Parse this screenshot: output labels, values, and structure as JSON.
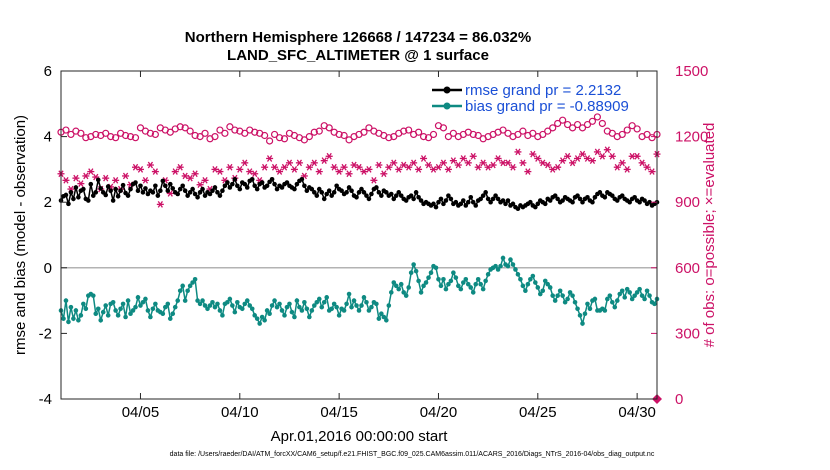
{
  "chart_data": {
    "type": "line",
    "title": "Northern Hemisphere 126668 / 147234 = 86.032%",
    "subtitle": "LAND_SFC_ALTIMETER @ 1 surface",
    "xlabel": "Apr.01,2016 00:00:00 start",
    "ylabel": "rmse and bias (model - observation)",
    "ylabel_right": "# of obs: o=possible; ×=evaluated",
    "xlim": [
      1,
      31
    ],
    "ylim": [
      -4,
      6
    ],
    "ylim_right": [
      0,
      1500
    ],
    "xticks": [
      5,
      10,
      15,
      20,
      25,
      30
    ],
    "xtick_labels": [
      "04/05",
      "04/10",
      "04/15",
      "04/20",
      "04/25",
      "04/30"
    ],
    "yticks": [
      -4,
      -2,
      0,
      2,
      4,
      6
    ],
    "ytick_labels": [
      "-4",
      "-2",
      "0",
      "2",
      "4",
      "6"
    ],
    "yticks_right": [
      0,
      300,
      600,
      900,
      1200,
      1500
    ],
    "ytick_labels_right": [
      "0",
      "300",
      "600",
      "900",
      "1200",
      "1500"
    ],
    "legend": {
      "position": "top-right",
      "entries": [
        "rmse grand pr = 2.2132",
        "bias grand pr = -0.88909"
      ]
    },
    "colors": {
      "rmse": "#000000",
      "bias": "#0e8a82",
      "obs": "#cc1166",
      "zero_line": "#b3b3b3",
      "legend_text": "#1a4fd6"
    },
    "step_days": 0.125,
    "series": [
      {
        "name": "rmse",
        "values": [
          2.05,
          2.18,
          2.22,
          1.95,
          2.3,
          2.1,
          2.45,
          2.15,
          2.35,
          2.4,
          2.1,
          2.05,
          2.55,
          2.2,
          2.3,
          2.68,
          2.42,
          2.3,
          2.22,
          2.48,
          2.35,
          2.05,
          2.4,
          2.18,
          2.35,
          2.52,
          2.28,
          2.2,
          2.4,
          2.55,
          2.6,
          2.35,
          2.5,
          2.3,
          2.42,
          2.25,
          2.35,
          2.3,
          2.5,
          2.2,
          2.35,
          2.65,
          2.5,
          2.35,
          2.55,
          2.42,
          2.3,
          2.25,
          2.4,
          2.5,
          2.35,
          2.2,
          2.3,
          2.4,
          2.25,
          2.15,
          2.3,
          2.4,
          2.2,
          2.3,
          2.25,
          2.35,
          2.45,
          2.3,
          2.2,
          2.35,
          2.5,
          2.6,
          2.45,
          2.55,
          2.7,
          2.5,
          2.4,
          2.6,
          2.55,
          2.45,
          2.65,
          2.7,
          2.5,
          2.4,
          2.55,
          2.6,
          2.45,
          2.5,
          2.62,
          2.7,
          2.55,
          2.4,
          2.5,
          2.45,
          2.55,
          2.6,
          2.5,
          2.45,
          2.4,
          2.55,
          2.65,
          2.7,
          2.5,
          2.35,
          2.45,
          2.4,
          2.3,
          2.2,
          2.4,
          2.3,
          2.1,
          2.25,
          2.35,
          2.2,
          2.3,
          2.5,
          2.4,
          2.35,
          2.25,
          2.3,
          2.45,
          2.35,
          2.2,
          2.15,
          2.3,
          2.4,
          2.3,
          2.2,
          2.1,
          2.25,
          2.4,
          2.45,
          2.3,
          2.2,
          2.35,
          2.3,
          2.2,
          2.25,
          2.1,
          2.2,
          2.3,
          2.2,
          2.1,
          2.05,
          2.15,
          2.2,
          2.1,
          2.3,
          2.15,
          2.05,
          1.95,
          2.0,
          1.95,
          1.9,
          1.95,
          1.85,
          2.0,
          2.1,
          1.95,
          2.05,
          2.2,
          2.1,
          1.95,
          2.0,
          1.9,
          1.95,
          2.05,
          1.9,
          2.0,
          2.15,
          2.0,
          1.9,
          2.05,
          2.1,
          2.2,
          2.3,
          2.1,
          2.0,
          2.1,
          2.2,
          2.1,
          2.0,
          2.05,
          1.95,
          2.05,
          1.9,
          1.95,
          1.85,
          1.8,
          1.9,
          1.85,
          1.9,
          1.95,
          2.0,
          1.9,
          1.85,
          1.95,
          2.05,
          2.0,
          1.95,
          2.1,
          2.05,
          2.15,
          2.2,
          2.1,
          2.0,
          2.05,
          2.15,
          2.1,
          2.05,
          2.0,
          2.15,
          2.2,
          2.1,
          2.0,
          2.1,
          2.15,
          2.05,
          2.0,
          2.15,
          2.25,
          2.3,
          2.2,
          2.15,
          2.3,
          2.25,
          2.2,
          2.1,
          2.05,
          2.15,
          2.2,
          2.1,
          2.05,
          2.0,
          2.1,
          2.15,
          2.05,
          2.0,
          2.1,
          2.05,
          1.95,
          2.0,
          1.9,
          1.95,
          2.0,
          1.95,
          2.05,
          2.1,
          2.0,
          2.05,
          1.95,
          1.9,
          2.0,
          2.1,
          2.2,
          2.1,
          2.05,
          2.0,
          2.1,
          2.15,
          2.05,
          2.1,
          2.2,
          2.15,
          2.0,
          1.95,
          2.05,
          2.15,
          2.1,
          2.05,
          1.95,
          1.9,
          1.95,
          2.0,
          2.05,
          2.0,
          1.95,
          2.0,
          2.0
        ]
      },
      {
        "name": "bias",
        "values": [
          -1.3,
          -1.55,
          -1.0,
          -1.65,
          -1.2,
          -1.55,
          -1.3,
          -1.6,
          -1.45,
          -1.1,
          -1.25,
          -0.85,
          -0.8,
          -0.85,
          -1.4,
          -1.25,
          -1.6,
          -1.35,
          -1.15,
          -1.45,
          -1.1,
          -1.05,
          -1.3,
          -1.45,
          -1.25,
          -1.1,
          -1.5,
          -1.0,
          -1.4,
          -1.3,
          -1.2,
          -0.9,
          -1.15,
          -1.05,
          -0.95,
          -1.3,
          -1.5,
          -1.25,
          -1.1,
          -1.3,
          -1.35,
          -1.4,
          -1.2,
          -1.1,
          -1.55,
          -1.4,
          -1.2,
          -1.0,
          -0.7,
          -0.55,
          -1.0,
          -0.7,
          -0.55,
          -0.45,
          -0.35,
          -1.0,
          -1.1,
          -1.0,
          -1.15,
          -1.25,
          -1.15,
          -1.05,
          -1.2,
          -1.1,
          -1.3,
          -1.45,
          -1.1,
          -1.05,
          -0.95,
          -1.15,
          -1.35,
          -1.05,
          -1.2,
          -1.25,
          -1.1,
          -1.0,
          -1.15,
          -1.25,
          -1.45,
          -1.55,
          -1.7,
          -1.5,
          -1.6,
          -1.3,
          -1.4,
          -1.15,
          -1.0,
          -1.2,
          -1.1,
          -1.3,
          -1.45,
          -1.2,
          -1.1,
          -1.35,
          -1.5,
          -1.0,
          -1.2,
          -1.3,
          -1.05,
          -1.25,
          -1.5,
          -1.3,
          -1.15,
          -1.05,
          -0.95,
          -1.2,
          -1.05,
          -0.9,
          -1.3,
          -1.25,
          -1.1,
          -1.2,
          -1.45,
          -1.25,
          -1.3,
          -1.1,
          -0.8,
          -1.2,
          -1.0,
          -1.15,
          -1.3,
          -1.15,
          -0.9,
          -1.05,
          -1.3,
          -1.2,
          -1.05,
          -1.1,
          -1.55,
          -1.4,
          -1.5,
          -1.6,
          -1.15,
          -0.75,
          -0.45,
          -0.55,
          -0.65,
          -0.5,
          -0.75,
          -0.85,
          -0.6,
          -0.15,
          0.1,
          -0.1,
          -0.4,
          -0.75,
          -0.55,
          -0.45,
          -0.3,
          -0.15,
          0.05,
          0.0,
          -0.35,
          -0.55,
          -0.35,
          -0.65,
          -0.5,
          -0.4,
          -0.15,
          -0.3,
          -0.55,
          -0.65,
          -0.45,
          -0.35,
          -0.5,
          -0.6,
          -0.75,
          -0.5,
          -0.35,
          -0.5,
          -0.65,
          -0.4,
          -0.2,
          -0.05,
          0.0,
          0.05,
          -0.05,
          0.05,
          0.3,
          0.1,
          0.05,
          0.25,
          0.1,
          -0.05,
          -0.2,
          -0.35,
          -0.55,
          -0.7,
          -0.5,
          -0.35,
          -0.25,
          -0.45,
          -0.6,
          -0.8,
          -0.7,
          -0.4,
          -0.5,
          -0.6,
          -0.85,
          -1.0,
          -0.85,
          -0.7,
          -0.85,
          -1.05,
          -0.95,
          -0.75,
          -0.85,
          -1.05,
          -1.25,
          -1.45,
          -1.7,
          -1.4,
          -1.1,
          -1.25,
          -1.0,
          -0.95,
          -1.3,
          -1.3,
          -1.25,
          -1.3,
          -0.95,
          -0.85,
          -1.05,
          -1.2,
          -1.0,
          -0.8,
          -0.7,
          -0.9,
          -0.65,
          -0.75,
          -0.95,
          -0.85,
          -0.75,
          -0.65,
          -0.85,
          -0.95,
          -0.7,
          -0.85,
          -1.05,
          -1.1,
          -0.95,
          -0.8,
          -0.75,
          -0.9,
          -1.0,
          -1.05,
          -0.9,
          -0.65,
          -0.5,
          -0.75,
          -0.9,
          -0.8,
          -0.55,
          -0.4,
          -0.3,
          -0.55,
          -0.75,
          -0.5,
          -0.3,
          0.0,
          -0.35,
          -0.45,
          -0.55,
          -0.75,
          -0.8,
          -0.95,
          -0.25
        ]
      },
      {
        "name": "obs_possible",
        "values": [
          1220,
          1230,
          1210,
          1225,
          1215,
          1195,
          1200,
          1210,
          1205,
          1215,
          1200,
          1195,
          1215,
          1205,
          1200,
          1195,
          1240,
          1225,
          1215,
          1210,
          1240,
          1230,
          1220,
          1235,
          1245,
          1240,
          1225,
          1205,
          1200,
          1215,
          1190,
          1200,
          1230,
          1215,
          1245,
          1230,
          1225,
          1215,
          1230,
          1220,
          1215,
          1205,
          1180,
          1210,
          1195,
          1190,
          1215,
          1205,
          1195,
          1185,
          1200,
          1220,
          1225,
          1250,
          1240,
          1220,
          1210,
          1205,
          1185,
          1200,
          1210,
          1220,
          1240,
          1225,
          1215,
          1205,
          1195,
          1200,
          1215,
          1225,
          1230,
          1210,
          1220,
          1200,
          1195,
          1210,
          1250,
          1240,
          1200,
          1215,
          1200,
          1210,
          1220,
          1210,
          1205,
          1190,
          1200,
          1210,
          1220,
          1230,
          1215,
          1200,
          1210,
          1225,
          1205,
          1215,
          1200,
          1210,
          1225,
          1240,
          1260,
          1275,
          1255,
          1240,
          1255,
          1240,
          1255,
          1270,
          1290,
          1260,
          1225,
          1215,
          1200,
          1210,
          1230,
          1250,
          1235,
          1200,
          1210,
          1195,
          1210,
          1215,
          1225,
          1250,
          1280,
          1295,
          1275,
          1300,
          1280,
          1265,
          1240,
          1230,
          1225,
          1235,
          1250
        ],
        "step_days": 0.25
      },
      {
        "name": "obs_evaluated",
        "values": [
          1030,
          1000,
          960,
          1010,
          985,
          1020,
          1040,
          1015,
          960,
          1010,
          970,
          1000,
          960,
          1020,
          980,
          1060,
          1050,
          1000,
          1070,
          1040,
          890,
          1000,
          940,
          1040,
          1060,
          1020,
          1010,
          1030,
          980,
          1000,
          960,
          1050,
          1040,
          1000,
          1060,
          1010,
          1050,
          1080,
          1040,
          1030,
          1000,
          1060,
          1100,
          1060,
          1040,
          1060,
          1080,
          1050,
          1080,
          1020,
          1060,
          1080,
          1040,
          1090,
          1110,
          1060,
          1040,
          1060,
          1030,
          1070,
          1060,
          1040,
          1050,
          1000,
          1070,
          1030,
          1060,
          1080,
          1050,
          1070,
          1060,
          1080,
          1050,
          1100,
          1070,
          1050,
          1060,
          1080,
          1050,
          1090,
          1070,
          1100,
          1080,
          1110,
          1060,
          1080,
          1060,
          1070,
          1100,
          1080,
          1080,
          1060,
          1130,
          1080,
          1040,
          1120,
          1100,
          1080,
          1070,
          1050,
          1060,
          1090,
          1110,
          1080,
          1100,
          1120,
          1100,
          1090,
          1130,
          1110,
          1140,
          1110,
          1060,
          1080,
          1050,
          1110,
          1110,
          1080,
          1060,
          1040,
          1120,
          1100,
          1090,
          1150,
          1140,
          1160,
          1110,
          1150,
          1120,
          1140,
          1040,
          1090,
          1110,
          1100,
          1110
        ],
        "step_days": 0.25
      }
    ]
  },
  "footer": {
    "data_file": "data file: /Users/raeder/DAI/ATM_forcXX/CAM6_setup/f.e21.FHIST_BGC.f09_025.CAM6assim.011/ACARS_2016/Diags_NTrS_2016-04/obs_diag_output.nc"
  }
}
